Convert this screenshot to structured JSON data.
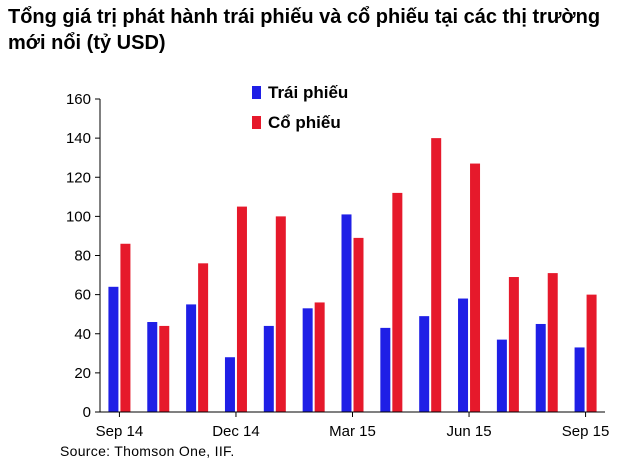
{
  "chart_data": {
    "type": "bar",
    "title": "Tổng giá trị phát hành trái phiếu và cổ phiếu tại các thị trường mới nổi (tỷ USD)",
    "categories": [
      "Sep 14",
      "Oct 14",
      "Nov 14",
      "Dec 14",
      "Jan 15",
      "Feb 15",
      "Mar 15",
      "Apr 15",
      "May 15",
      "Jun 15",
      "Jul 15",
      "Aug 15",
      "Sep 15"
    ],
    "x_tick_labels": [
      "Sep 14",
      "Dec 14",
      "Mar 15",
      "Jun 15",
      "Sep 15"
    ],
    "x_tick_indices": [
      0,
      3,
      6,
      9,
      12
    ],
    "series": [
      {
        "name": "Trái phiếu",
        "color": "#1f1fe6",
        "values": [
          64,
          46,
          55,
          28,
          44,
          53,
          101,
          43,
          49,
          58,
          37,
          45,
          33
        ]
      },
      {
        "name": "Cổ phiếu",
        "color": "#e6192b",
        "values": [
          86,
          44,
          76,
          105,
          100,
          56,
          89,
          112,
          140,
          127,
          69,
          71,
          60
        ]
      }
    ],
    "ylim": [
      0,
      160
    ],
    "y_ticks": [
      "0",
      "20",
      "40",
      "60",
      "80",
      "100",
      "120",
      "140",
      "160"
    ],
    "legend_position": "top-left",
    "grid": false,
    "source": "Source: Thomson One, IIF."
  }
}
